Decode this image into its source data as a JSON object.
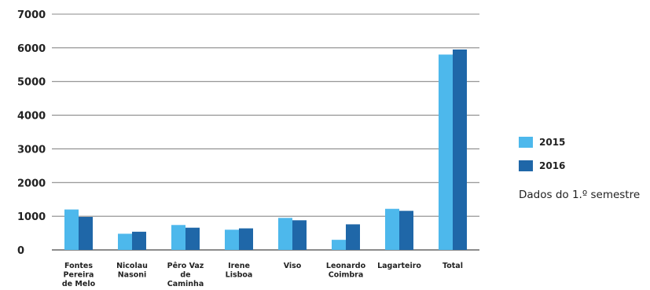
{
  "chart_data": {
    "type": "bar",
    "categories": [
      "Fontes Pereira de Melo",
      "Nicolau Nasoni",
      "Pêro Vaz de Caminha",
      "Irene Lisboa",
      "Viso",
      "Leonardo Coimbra",
      "Lagarteiro",
      "Total"
    ],
    "category_lines": [
      [
        "Fontes",
        "Pereira",
        "de Melo"
      ],
      [
        "Nicolau",
        "Nasoni"
      ],
      [
        "Pêro Vaz",
        "de",
        "Caminha"
      ],
      [
        "Irene",
        "Lisboa"
      ],
      [
        "Viso"
      ],
      [
        "Leonardo",
        "Coimbra"
      ],
      [
        "Lagarteiro"
      ],
      [
        "Total"
      ]
    ],
    "series": [
      {
        "name": "2015",
        "color": "#4db8ec",
        "values": [
          1200,
          480,
          740,
          600,
          950,
          300,
          1220,
          5800
        ]
      },
      {
        "name": "2016",
        "color": "#1f67a8",
        "values": [
          980,
          540,
          660,
          640,
          880,
          760,
          1160,
          5950
        ]
      }
    ],
    "yticks": [
      "0",
      "1000",
      "2000",
      "3000",
      "4000",
      "5000",
      "6000",
      "7000"
    ],
    "ylim": [
      0,
      7000
    ],
    "grid": true,
    "legend_position": "right",
    "note": "Dados do 1.º semestre"
  }
}
